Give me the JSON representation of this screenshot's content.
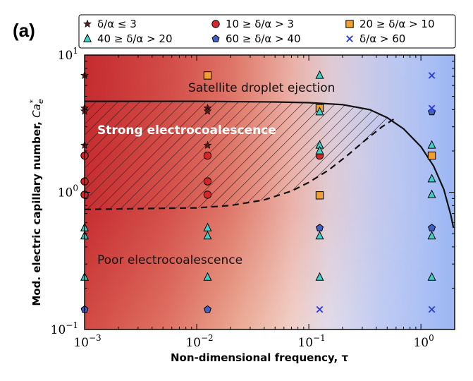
{
  "panel_label": "(a)",
  "chart_data": {
    "type": "scatter",
    "xscale": "log",
    "yscale": "log",
    "xlim": [
      0.001,
      2
    ],
    "ylim": [
      0.1,
      10
    ],
    "xlabel": "Non-dimensional frequency, τ",
    "ylabel": "Mod. electric capillary number, Ca*e",
    "ylabel_parts": {
      "main": "Mod. electric capillary number, ",
      "symbol": "Ca",
      "sup": "*",
      "sub": "e"
    },
    "xticks": [
      {
        "value": 0.001,
        "base": "10",
        "exp": "−3"
      },
      {
        "value": 0.01,
        "base": "10",
        "exp": "−2"
      },
      {
        "value": 0.1,
        "base": "10",
        "exp": "−1"
      },
      {
        "value": 1,
        "base": "10",
        "exp": "0"
      }
    ],
    "yticks": [
      {
        "value": 0.1,
        "base": "10",
        "exp": "−1"
      },
      {
        "value": 1,
        "base": "10",
        "exp": "0"
      },
      {
        "value": 10,
        "base": "10",
        "exp": "1"
      }
    ],
    "background": "Red (low τ, high Ca*e) to blue (high τ) shaded field",
    "colors": {
      "red": "#c0262b",
      "pale": "#f7e4dc",
      "blue": "#9ab5f5",
      "text_light": "#ffffff",
      "text_dark": "#111111"
    },
    "regions": [
      {
        "label": "Satellite droplet ejection",
        "color": "#111111"
      },
      {
        "label": "Strong electrocoalescence",
        "color": "#ffffff"
      },
      {
        "label": "Poor electrocoalescence",
        "color": "#111111"
      }
    ],
    "boundaries": [
      {
        "style": "solid",
        "points": [
          [
            0.001,
            4.6
          ],
          [
            0.01,
            4.6
          ],
          [
            0.05,
            4.55
          ],
          [
            0.1,
            4.5
          ],
          [
            0.2,
            4.35
          ],
          [
            0.35,
            4.0
          ],
          [
            0.5,
            3.5
          ],
          [
            0.7,
            2.9
          ],
          [
            1.0,
            2.15
          ],
          [
            1.3,
            1.55
          ],
          [
            1.6,
            1.05
          ],
          [
            1.85,
            0.68
          ],
          [
            1.95,
            0.55
          ]
        ]
      },
      {
        "style": "dashed",
        "points": [
          [
            0.001,
            0.75
          ],
          [
            0.003,
            0.76
          ],
          [
            0.01,
            0.77
          ],
          [
            0.02,
            0.8
          ],
          [
            0.04,
            0.88
          ],
          [
            0.07,
            1.02
          ],
          [
            0.1,
            1.18
          ],
          [
            0.15,
            1.45
          ],
          [
            0.22,
            1.85
          ],
          [
            0.32,
            2.4
          ],
          [
            0.45,
            3.0
          ],
          [
            0.6,
            3.5
          ]
        ]
      }
    ],
    "series": [
      {
        "name": "δ/α ≤ 3",
        "marker": "star",
        "color": "#5a1a1a",
        "points": [
          [
            0.001,
            7.1
          ],
          [
            0.001,
            4.1
          ],
          [
            0.001,
            3.9
          ],
          [
            0.001,
            2.2
          ],
          [
            0.0125,
            4.1
          ],
          [
            0.0125,
            3.9
          ],
          [
            0.0125,
            2.2
          ]
        ]
      },
      {
        "name": "10 ≥ δ/α > 3",
        "marker": "circle",
        "color": "#d62728",
        "points": [
          [
            0.001,
            1.85
          ],
          [
            0.001,
            1.2
          ],
          [
            0.001,
            0.96
          ],
          [
            0.0125,
            1.85
          ],
          [
            0.0125,
            1.2
          ],
          [
            0.0125,
            0.96
          ],
          [
            0.125,
            1.85
          ]
        ]
      },
      {
        "name": "20 ≥ δ/α > 10",
        "marker": "square",
        "color": "#f0a030",
        "points": [
          [
            0.0125,
            7.1
          ],
          [
            0.125,
            4.1
          ],
          [
            0.125,
            0.95
          ],
          [
            1.25,
            1.85
          ]
        ]
      },
      {
        "name": "40 ≥ δ/α > 20",
        "marker": "triangle",
        "color": "#40d0c8",
        "points": [
          [
            0.001,
            0.55
          ],
          [
            0.001,
            0.48
          ],
          [
            0.001,
            0.24
          ],
          [
            0.0125,
            0.55
          ],
          [
            0.0125,
            0.48
          ],
          [
            0.0125,
            0.24
          ],
          [
            0.125,
            7.1
          ],
          [
            0.125,
            3.85
          ],
          [
            0.125,
            2.2
          ],
          [
            0.125,
            2.0
          ],
          [
            0.125,
            0.48
          ],
          [
            0.125,
            0.24
          ],
          [
            1.25,
            2.2
          ],
          [
            1.25,
            1.25
          ],
          [
            1.25,
            0.96
          ],
          [
            1.25,
            0.48
          ],
          [
            1.25,
            0.24
          ]
        ]
      },
      {
        "name": "60 ≥ δ/α > 40",
        "marker": "pentagon",
        "color": "#4060c8",
        "points": [
          [
            0.001,
            0.14
          ],
          [
            0.0125,
            0.14
          ],
          [
            0.125,
            0.55
          ],
          [
            1.25,
            3.85
          ],
          [
            1.25,
            0.55
          ]
        ]
      },
      {
        "name": "δ/α > 60",
        "marker": "x",
        "color": "#2a3ad8",
        "points": [
          [
            1.25,
            7.1
          ],
          [
            1.25,
            4.1
          ],
          [
            0.125,
            0.14
          ],
          [
            1.25,
            0.14
          ]
        ]
      }
    ]
  }
}
